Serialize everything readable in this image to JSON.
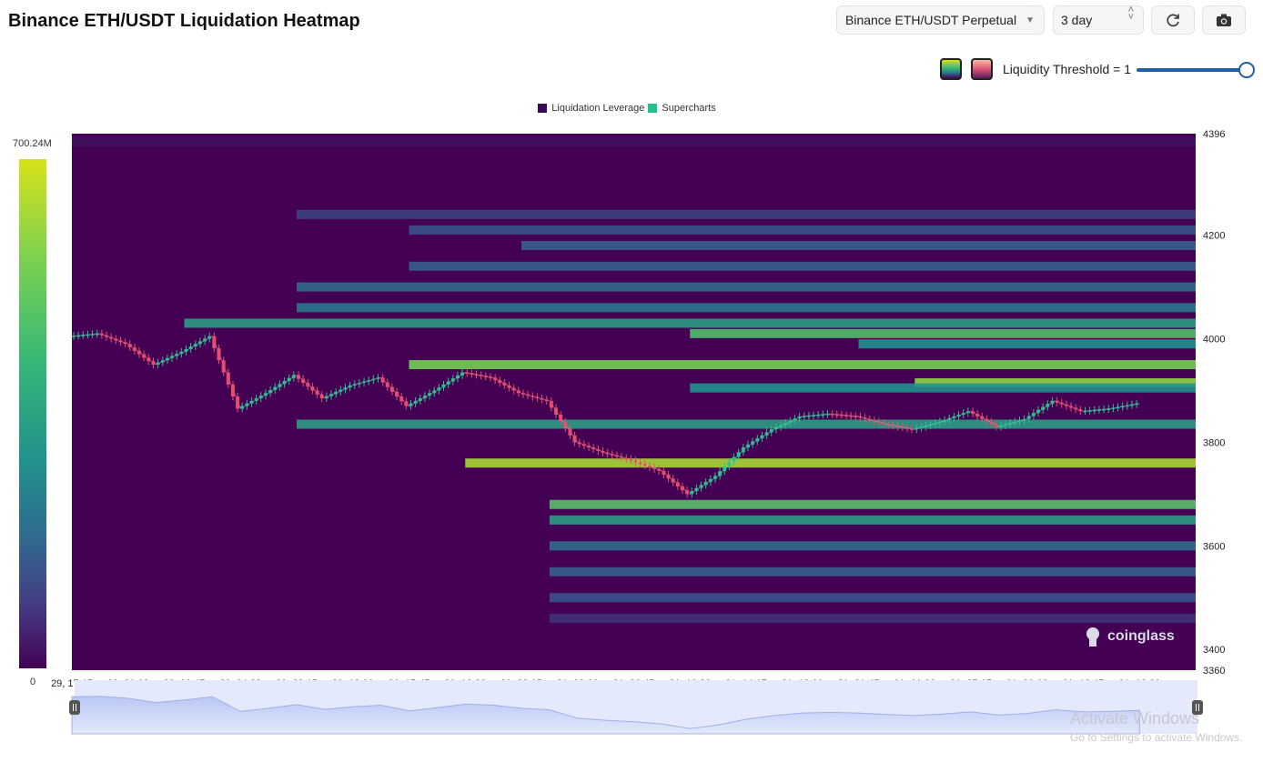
{
  "header": {
    "title": "Binance ETH/USDT Liquidation Heatmap",
    "market_select": "Binance ETH/USDT Perpetual",
    "range_select": "3 day",
    "refresh_icon": "refresh-icon",
    "camera_icon": "camera-icon"
  },
  "threshold": {
    "label": "Liquidity Threshold = 1",
    "value": 1.0
  },
  "colors": {
    "heat_low": "#440154",
    "heat_high": "#d8e219",
    "candle_down": "#e84d6d",
    "candle_up": "#2fbf91",
    "slider": "#1f5fa8"
  },
  "color_scale": {
    "max_label": "700.24M",
    "min_label": "0"
  },
  "watermark": "coinglass",
  "overlay": {
    "line1": "Activate Windows",
    "line2": "Go to Settings to activate Windows."
  },
  "chart_data": {
    "type": "heatmap",
    "title": "Binance ETH/USDT Liquidation Heatmap",
    "legend": [
      {
        "name": "Liquidation Leverage",
        "color": "#3b0a57"
      },
      {
        "name": "Supercharts",
        "color": "#1fc28b"
      }
    ],
    "legend_position": "top-center",
    "y_axis": {
      "min": 3360,
      "max": 4396,
      "ticks": [
        4396,
        4200,
        4000,
        3800,
        3600,
        3400,
        3360
      ],
      "position": "right"
    },
    "x_axis": {
      "ticks": [
        "29, 17:15",
        "29, 21:00",
        "30, 00:45",
        "30, 04:30",
        "30, 08:15",
        "30, 12:00",
        "30, 15:45",
        "30, 19:30",
        "30, 23:15",
        "31, 03:00",
        "31, 06:45",
        "31, 10:30",
        "31, 14:15",
        "31, 18:00",
        "31, 21:45",
        "01, 01:30",
        "01, 05:15",
        "01, 09:00",
        "01, 12:45",
        "01, 16:30"
      ]
    },
    "price_series": {
      "name": "ETH/USDT",
      "t": [
        0,
        0.5,
        1,
        1.5,
        2,
        2.5,
        3,
        3.5,
        4,
        4.5,
        5,
        5.5,
        6,
        6.5,
        7,
        7.5,
        8,
        8.5,
        9,
        9.5,
        10,
        10.5,
        11,
        11.5,
        12,
        12.5,
        13,
        13.5,
        14,
        14.5,
        15,
        15.5,
        16,
        16.5,
        17,
        17.5,
        18,
        18.5,
        19
      ],
      "price": [
        4005,
        4010,
        3990,
        3950,
        3975,
        4005,
        3865,
        3895,
        3930,
        3885,
        3910,
        3925,
        3870,
        3900,
        3935,
        3925,
        3895,
        3880,
        3800,
        3780,
        3765,
        3745,
        3700,
        3735,
        3790,
        3825,
        3850,
        3855,
        3850,
        3835,
        3825,
        3840,
        3860,
        3830,
        3845,
        3880,
        3860,
        3865,
        3875
      ]
    },
    "liquidity_bands": [
      {
        "price": 4380,
        "start": 0,
        "intensity": 0.05
      },
      {
        "price": 4240,
        "start": 4,
        "intensity": 0.2
      },
      {
        "price": 4210,
        "start": 6,
        "intensity": 0.25
      },
      {
        "price": 4180,
        "start": 8,
        "intensity": 0.3
      },
      {
        "price": 4140,
        "start": 6,
        "intensity": 0.3
      },
      {
        "price": 4100,
        "start": 4,
        "intensity": 0.35
      },
      {
        "price": 4060,
        "start": 4,
        "intensity": 0.4
      },
      {
        "price": 4030,
        "start": 2,
        "intensity": 0.55
      },
      {
        "price": 4010,
        "start": 11,
        "intensity": 0.7
      },
      {
        "price": 3990,
        "start": 14,
        "intensity": 0.5
      },
      {
        "price": 3950,
        "start": 6,
        "intensity": 0.8
      },
      {
        "price": 3915,
        "start": 15,
        "intensity": 0.85
      },
      {
        "price": 3905,
        "start": 11,
        "intensity": 0.5
      },
      {
        "price": 3835,
        "start": 4,
        "intensity": 0.55
      },
      {
        "price": 3760,
        "start": 7,
        "intensity": 0.9
      },
      {
        "price": 3680,
        "start": 8.5,
        "intensity": 0.72
      },
      {
        "price": 3650,
        "start": 8.5,
        "intensity": 0.55
      },
      {
        "price": 3600,
        "start": 8.5,
        "intensity": 0.35
      },
      {
        "price": 3550,
        "start": 8.5,
        "intensity": 0.3
      },
      {
        "price": 3500,
        "start": 8.5,
        "intensity": 0.25
      },
      {
        "price": 3460,
        "start": 8.5,
        "intensity": 0.15
      }
    ]
  }
}
